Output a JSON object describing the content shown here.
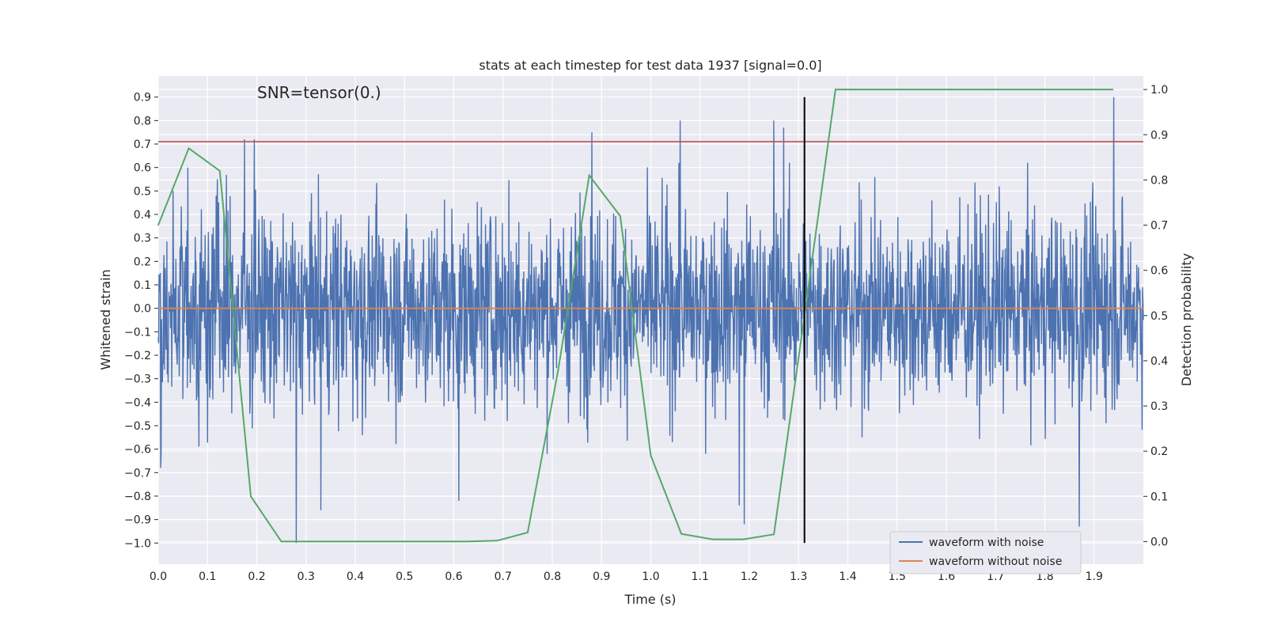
{
  "chart_data": {
    "type": "line",
    "title": "stats at each timestep for test data 1937 [signal=0.0]",
    "xlabel": "Time (s)",
    "ylabel": "Whitened strain",
    "ylabel_right": "Detection probability",
    "annotation": "SNR=tensor(0.)",
    "xlim": [
      0.0,
      2.0
    ],
    "ylim": [
      -1.09,
      0.99
    ],
    "ylim_right": [
      -0.05,
      1.03
    ],
    "xticks": [
      "0.0",
      "0.1",
      "0.2",
      "0.3",
      "0.4",
      "0.5",
      "0.6",
      "0.7",
      "0.8",
      "0.9",
      "1.0",
      "1.1",
      "1.2",
      "1.3",
      "1.4",
      "1.5",
      "1.6",
      "1.7",
      "1.8",
      "1.9"
    ],
    "yticks_left": [
      "0.9",
      "0.8",
      "0.7",
      "0.6",
      "0.5",
      "0.4",
      "0.3",
      "0.2",
      "0.1",
      "0.0",
      "−0.1",
      "−0.2",
      "−0.3",
      "−0.4",
      "−0.5",
      "−0.6",
      "−0.7",
      "−0.8",
      "−0.9",
      "−1.0"
    ],
    "yticks_right": [
      "1.0",
      "0.9",
      "0.8",
      "0.7",
      "0.6",
      "0.5",
      "0.4",
      "0.3",
      "0.2",
      "0.1",
      "0.0"
    ],
    "grid": true,
    "legend_position": "lower-right",
    "series": [
      {
        "name": "waveform with noise",
        "color": "#4c72b0",
        "axis": "left",
        "kind": "noise",
        "amplitude_typical": 0.3,
        "peaks": [
          {
            "x": 0.005,
            "y": -0.68
          },
          {
            "x": 0.03,
            "y": 0.5
          },
          {
            "x": 0.06,
            "y": 0.6
          },
          {
            "x": 0.12,
            "y": 0.55
          },
          {
            "x": 0.175,
            "y": 0.72
          },
          {
            "x": 0.195,
            "y": 0.72
          },
          {
            "x": 0.28,
            "y": -1.0
          },
          {
            "x": 0.33,
            "y": -0.86
          },
          {
            "x": 0.61,
            "y": -0.82
          },
          {
            "x": 0.88,
            "y": 0.75
          },
          {
            "x": 1.06,
            "y": 0.8
          },
          {
            "x": 1.18,
            "y": -0.84
          },
          {
            "x": 1.19,
            "y": -0.92
          },
          {
            "x": 1.25,
            "y": 0.8
          },
          {
            "x": 1.27,
            "y": 0.77
          },
          {
            "x": 1.87,
            "y": -0.93
          },
          {
            "x": 1.94,
            "y": 0.9
          }
        ]
      },
      {
        "name": "waveform without noise",
        "color": "#dd8452",
        "axis": "left",
        "x": [
          0.0,
          2.0
        ],
        "y": [
          0.0,
          0.0
        ]
      },
      {
        "name": "",
        "color": "#55a868",
        "axis": "right",
        "x": [
          0.0,
          0.062,
          0.125,
          0.188,
          0.25,
          0.312,
          0.375,
          0.438,
          0.5,
          0.562,
          0.625,
          0.688,
          0.75,
          0.812,
          0.875,
          0.938,
          1.0,
          1.062,
          1.125,
          1.188,
          1.25,
          1.312,
          1.375,
          1.438,
          1.5,
          1.562,
          1.625,
          1.688,
          1.75,
          1.812,
          1.875,
          1.938
        ],
        "y": [
          0.7,
          0.87,
          0.82,
          0.1,
          0.0,
          0.0,
          0.0,
          0.0,
          0.0,
          0.0,
          0.0,
          0.002,
          0.02,
          0.38,
          0.81,
          0.72,
          0.19,
          0.017,
          0.005,
          0.005,
          0.016,
          0.5,
          1.0,
          1.0,
          1.0,
          1.0,
          1.0,
          1.0,
          1.0,
          1.0,
          1.0,
          1.0
        ]
      }
    ],
    "hlines": [
      {
        "y": 0.71,
        "axis": "left",
        "color": "#c44e52"
      }
    ],
    "vlines": [
      {
        "x": 1.312,
        "axis": "left",
        "ymin": -1.0,
        "ymax": 0.9,
        "color": "#000000"
      }
    ],
    "colors": {
      "plot_background": "#eaeaf2",
      "grid": "#ffffff",
      "text": "#262626"
    }
  }
}
